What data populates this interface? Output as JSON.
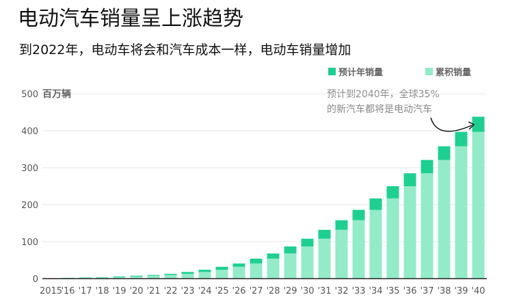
{
  "header": {
    "title": "电动汽车销量呈上涨趋势",
    "subtitle": "到2022年，电动车将会和汽车成本一样，电动车销量增加"
  },
  "legend": {
    "annual_label": "预计年销量",
    "cumulative_label": "累积销量"
  },
  "annotation": {
    "line1": "预计到2040年，全球35%",
    "line2": "的新汽车都将是电动汽车"
  },
  "colors": {
    "annual": "#1fcf91",
    "cumulative": "#93ebc9",
    "axis": "#222222",
    "grid": "#e6e6e6"
  },
  "chart_data": {
    "type": "bar",
    "stacked": true,
    "title": "电动汽车销量呈上涨趋势",
    "ylabel": "百万辆",
    "ylim": [
      0,
      500
    ],
    "yticks": [
      0,
      100,
      200,
      300,
      400,
      500
    ],
    "grid": true,
    "legend_position": "top-right",
    "categories": [
      "2015",
      "'16",
      "'17",
      "'18",
      "'19",
      "'20",
      "'21",
      "'22",
      "'23",
      "'24",
      "'25",
      "'26",
      "'27",
      "'28",
      "'29",
      "'30",
      "'31",
      "'32",
      "'33",
      "'34",
      "'35",
      "'36",
      "'37",
      "'38",
      "'39",
      "'40"
    ],
    "series": [
      {
        "name": "累积销量",
        "values": [
          0.5,
          1,
          2,
          3,
          4,
          6,
          8,
          10,
          13,
          18,
          24,
          32,
          41,
          54,
          68,
          87,
          108,
          132,
          158,
          186,
          217,
          250,
          285,
          321,
          358,
          397
        ]
      },
      {
        "name": "预计年销量",
        "values": [
          0.5,
          1,
          1,
          1,
          2,
          2,
          2,
          3,
          5,
          6,
          8,
          9,
          13,
          14,
          19,
          21,
          24,
          26,
          28,
          31,
          33,
          35,
          36,
          37,
          39,
          41
        ]
      }
    ]
  }
}
